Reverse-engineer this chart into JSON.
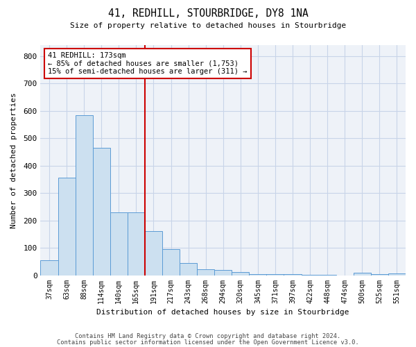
{
  "title1": "41, REDHILL, STOURBRIDGE, DY8 1NA",
  "title2": "Size of property relative to detached houses in Stourbridge",
  "xlabel": "Distribution of detached houses by size in Stourbridge",
  "ylabel": "Number of detached properties",
  "footer1": "Contains HM Land Registry data © Crown copyright and database right 2024.",
  "footer2": "Contains public sector information licensed under the Open Government Licence v3.0.",
  "bar_labels": [
    "37sqm",
    "63sqm",
    "88sqm",
    "114sqm",
    "140sqm",
    "165sqm",
    "191sqm",
    "217sqm",
    "243sqm",
    "268sqm",
    "294sqm",
    "320sqm",
    "345sqm",
    "371sqm",
    "397sqm",
    "422sqm",
    "448sqm",
    "474sqm",
    "500sqm",
    "525sqm",
    "551sqm"
  ],
  "bar_values": [
    55,
    355,
    585,
    465,
    230,
    230,
    160,
    95,
    45,
    22,
    18,
    12,
    5,
    4,
    3,
    2,
    1,
    0,
    9,
    4,
    7
  ],
  "bar_color": "#cce0f0",
  "bar_edge_color": "#5b9bd5",
  "red_line_x": 5.5,
  "red_line_color": "#cc0000",
  "annotation_text": "41 REDHILL: 173sqm\n← 85% of detached houses are smaller (1,753)\n15% of semi-detached houses are larger (311) →",
  "annotation_box_color": "#ffffff",
  "annotation_box_edge": "#cc0000",
  "ylim": [
    0,
    840
  ],
  "yticks": [
    0,
    100,
    200,
    300,
    400,
    500,
    600,
    700,
    800
  ],
  "grid_color": "#c8d4e8",
  "background_color": "#eef2f8"
}
